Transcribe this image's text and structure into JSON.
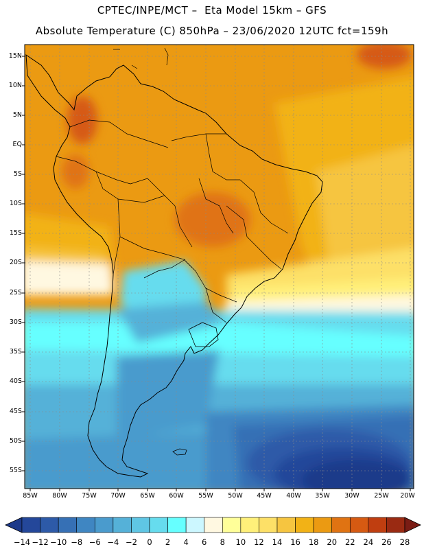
{
  "title_line1": "CPTEC/INPE/MCT –  Eta Model 15km – GFS",
  "title_line2": "Absolute Temperature (C) 850hPa – 23/06/2020 12UTC fct=159h",
  "y_axis_labels": [
    "15N",
    "10N",
    "5N",
    "EQ",
    "5S",
    "10S",
    "15S",
    "20S",
    "25S",
    "30S",
    "35S",
    "40S",
    "45S",
    "50S",
    "55S"
  ],
  "x_axis_labels": [
    "85W",
    "80W",
    "75W",
    "70W",
    "65W",
    "60W",
    "55W",
    "50W",
    "45W",
    "40W",
    "35W",
    "30W",
    "25W",
    "20W"
  ],
  "colorbar": {
    "levels": [
      -14,
      -12,
      -10,
      -8,
      -6,
      -4,
      -2,
      0,
      2,
      4,
      6,
      8,
      10,
      12,
      14,
      16,
      18,
      20,
      22,
      24,
      26,
      28
    ],
    "colors": [
      "#1d3a8a",
      "#24479a",
      "#2d5aa8",
      "#3670b5",
      "#3f86c2",
      "#4a9bcd",
      "#55b1d8",
      "#5fc6e4",
      "#66dcee",
      "#66ffff",
      "#ccf7ff",
      "#fff8e1",
      "#ffff99",
      "#fff07a",
      "#fde067",
      "#f6c540",
      "#f2b216",
      "#eb9a12",
      "#e07312",
      "#d65a12",
      "#c03e10",
      "#9a2a12",
      "#7a1c14"
    ]
  },
  "map_region": {
    "lat_range": [
      -58,
      17
    ],
    "lon_range": [
      -86,
      -19.5
    ]
  }
}
